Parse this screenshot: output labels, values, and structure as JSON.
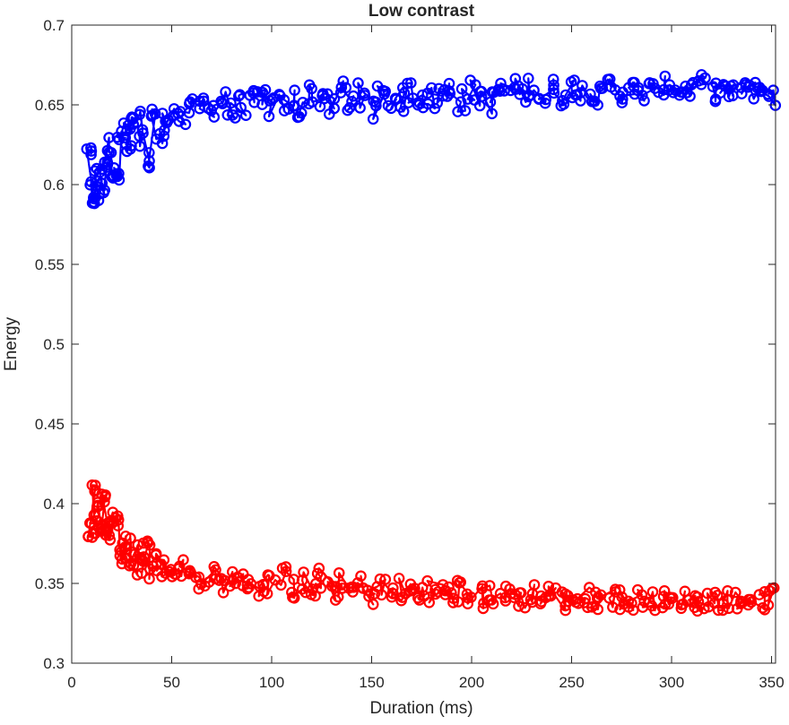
{
  "chart_data": {
    "type": "line",
    "title": "Low contrast",
    "xlabel": "Duration (ms)",
    "ylabel": "Energy",
    "xlim": [
      0,
      352
    ],
    "ylim": [
      0.3,
      0.7
    ],
    "x_ticks": [
      "0",
      "50",
      "100",
      "150",
      "200",
      "250",
      "300",
      "350"
    ],
    "y_ticks": [
      "0.3",
      "0.35",
      "0.4",
      "0.45",
      "0.5",
      "0.55",
      "0.6",
      "0.65",
      "0.7"
    ],
    "grid": false,
    "legend": "none",
    "marker": "circle",
    "series": [
      {
        "color": "#0000ff",
        "x": [
          9,
          10,
          11,
          12,
          13,
          15,
          17,
          19,
          21,
          23,
          25,
          27,
          29,
          31,
          33,
          35,
          38,
          41,
          44,
          47,
          50,
          55,
          60,
          65,
          70,
          75,
          80,
          85,
          90,
          95,
          100,
          105,
          110,
          115,
          120,
          125,
          130,
          135,
          140,
          145,
          150,
          155,
          160,
          165,
          170,
          175,
          180,
          185,
          190,
          195,
          200,
          205,
          210,
          215,
          220,
          225,
          230,
          235,
          240,
          245,
          250,
          255,
          260,
          265,
          270,
          275,
          280,
          285,
          290,
          295,
          300,
          305,
          310,
          315,
          320,
          325,
          330,
          335,
          340,
          345,
          350
        ],
        "y": [
          0.62,
          0.59,
          0.6,
          0.592,
          0.61,
          0.598,
          0.615,
          0.625,
          0.607,
          0.605,
          0.628,
          0.635,
          0.62,
          0.638,
          0.64,
          0.63,
          0.615,
          0.645,
          0.628,
          0.64,
          0.645,
          0.64,
          0.648,
          0.652,
          0.648,
          0.653,
          0.645,
          0.65,
          0.652,
          0.656,
          0.648,
          0.65,
          0.654,
          0.645,
          0.658,
          0.655,
          0.649,
          0.658,
          0.652,
          0.656,
          0.647,
          0.659,
          0.655,
          0.653,
          0.658,
          0.655,
          0.654,
          0.657,
          0.659,
          0.653,
          0.658,
          0.656,
          0.652,
          0.659,
          0.66,
          0.657,
          0.662,
          0.655,
          0.66,
          0.656,
          0.661,
          0.658,
          0.659,
          0.655,
          0.662,
          0.658,
          0.66,
          0.657,
          0.659,
          0.662,
          0.661,
          0.659,
          0.66,
          0.663,
          0.658,
          0.66,
          0.657,
          0.661,
          0.659,
          0.66,
          0.655
        ],
        "spread": [
          0.003,
          0.003,
          0.003,
          0.003,
          0.004,
          0.004,
          0.005,
          0.005,
          0.005,
          0.005,
          0.006,
          0.006,
          0.006,
          0.006,
          0.006,
          0.006,
          0.006,
          0.006,
          0.006,
          0.006,
          0.006,
          0.006,
          0.006,
          0.006,
          0.006,
          0.006,
          0.007,
          0.007,
          0.007,
          0.007,
          0.007,
          0.008,
          0.008,
          0.008,
          0.008,
          0.008,
          0.008,
          0.008,
          0.008,
          0.008,
          0.008,
          0.008,
          0.008,
          0.008,
          0.008,
          0.008,
          0.008,
          0.008,
          0.008,
          0.008,
          0.008,
          0.008,
          0.008,
          0.007,
          0.007,
          0.007,
          0.007,
          0.007,
          0.007,
          0.007,
          0.007,
          0.007,
          0.007,
          0.007,
          0.007,
          0.007,
          0.006,
          0.006,
          0.006,
          0.006,
          0.006,
          0.006,
          0.006,
          0.006,
          0.006,
          0.006,
          0.006,
          0.006,
          0.006,
          0.006,
          0.006
        ]
      },
      {
        "color": "#ff0000",
        "x": [
          9,
          10,
          11,
          12,
          13,
          15,
          17,
          19,
          21,
          23,
          25,
          27,
          29,
          31,
          33,
          35,
          38,
          41,
          44,
          47,
          50,
          55,
          60,
          65,
          70,
          75,
          80,
          85,
          90,
          95,
          100,
          105,
          110,
          115,
          120,
          125,
          130,
          135,
          140,
          145,
          150,
          155,
          160,
          165,
          170,
          175,
          180,
          185,
          190,
          195,
          200,
          205,
          210,
          215,
          220,
          225,
          230,
          235,
          240,
          245,
          250,
          255,
          260,
          265,
          270,
          275,
          280,
          285,
          290,
          295,
          300,
          305,
          310,
          315,
          320,
          325,
          330,
          335,
          340,
          345,
          350
        ],
        "y": [
          0.38,
          0.41,
          0.39,
          0.4,
          0.385,
          0.402,
          0.385,
          0.38,
          0.392,
          0.39,
          0.37,
          0.365,
          0.375,
          0.36,
          0.37,
          0.362,
          0.38,
          0.358,
          0.365,
          0.36,
          0.357,
          0.36,
          0.355,
          0.352,
          0.355,
          0.35,
          0.353,
          0.35,
          0.352,
          0.348,
          0.35,
          0.353,
          0.348,
          0.35,
          0.345,
          0.352,
          0.346,
          0.349,
          0.345,
          0.348,
          0.344,
          0.347,
          0.343,
          0.346,
          0.345,
          0.343,
          0.346,
          0.344,
          0.342,
          0.345,
          0.343,
          0.341,
          0.344,
          0.342,
          0.343,
          0.341,
          0.344,
          0.34,
          0.343,
          0.339,
          0.342,
          0.34,
          0.341,
          0.339,
          0.342,
          0.34,
          0.338,
          0.341,
          0.339,
          0.34,
          0.338,
          0.34,
          0.339,
          0.338,
          0.341,
          0.339,
          0.34,
          0.338,
          0.34,
          0.339,
          0.342
        ],
        "spread": [
          0.003,
          0.003,
          0.003,
          0.004,
          0.004,
          0.005,
          0.005,
          0.005,
          0.006,
          0.006,
          0.006,
          0.006,
          0.006,
          0.006,
          0.006,
          0.006,
          0.006,
          0.006,
          0.006,
          0.006,
          0.006,
          0.006,
          0.006,
          0.006,
          0.006,
          0.006,
          0.007,
          0.007,
          0.007,
          0.007,
          0.007,
          0.008,
          0.008,
          0.008,
          0.008,
          0.008,
          0.008,
          0.008,
          0.008,
          0.008,
          0.008,
          0.008,
          0.008,
          0.008,
          0.008,
          0.008,
          0.008,
          0.008,
          0.008,
          0.008,
          0.008,
          0.008,
          0.008,
          0.007,
          0.007,
          0.007,
          0.007,
          0.007,
          0.007,
          0.007,
          0.007,
          0.007,
          0.007,
          0.007,
          0.007,
          0.007,
          0.006,
          0.006,
          0.006,
          0.006,
          0.006,
          0.006,
          0.006,
          0.006,
          0.006,
          0.006,
          0.006,
          0.006,
          0.006,
          0.006,
          0.006
        ]
      }
    ]
  }
}
